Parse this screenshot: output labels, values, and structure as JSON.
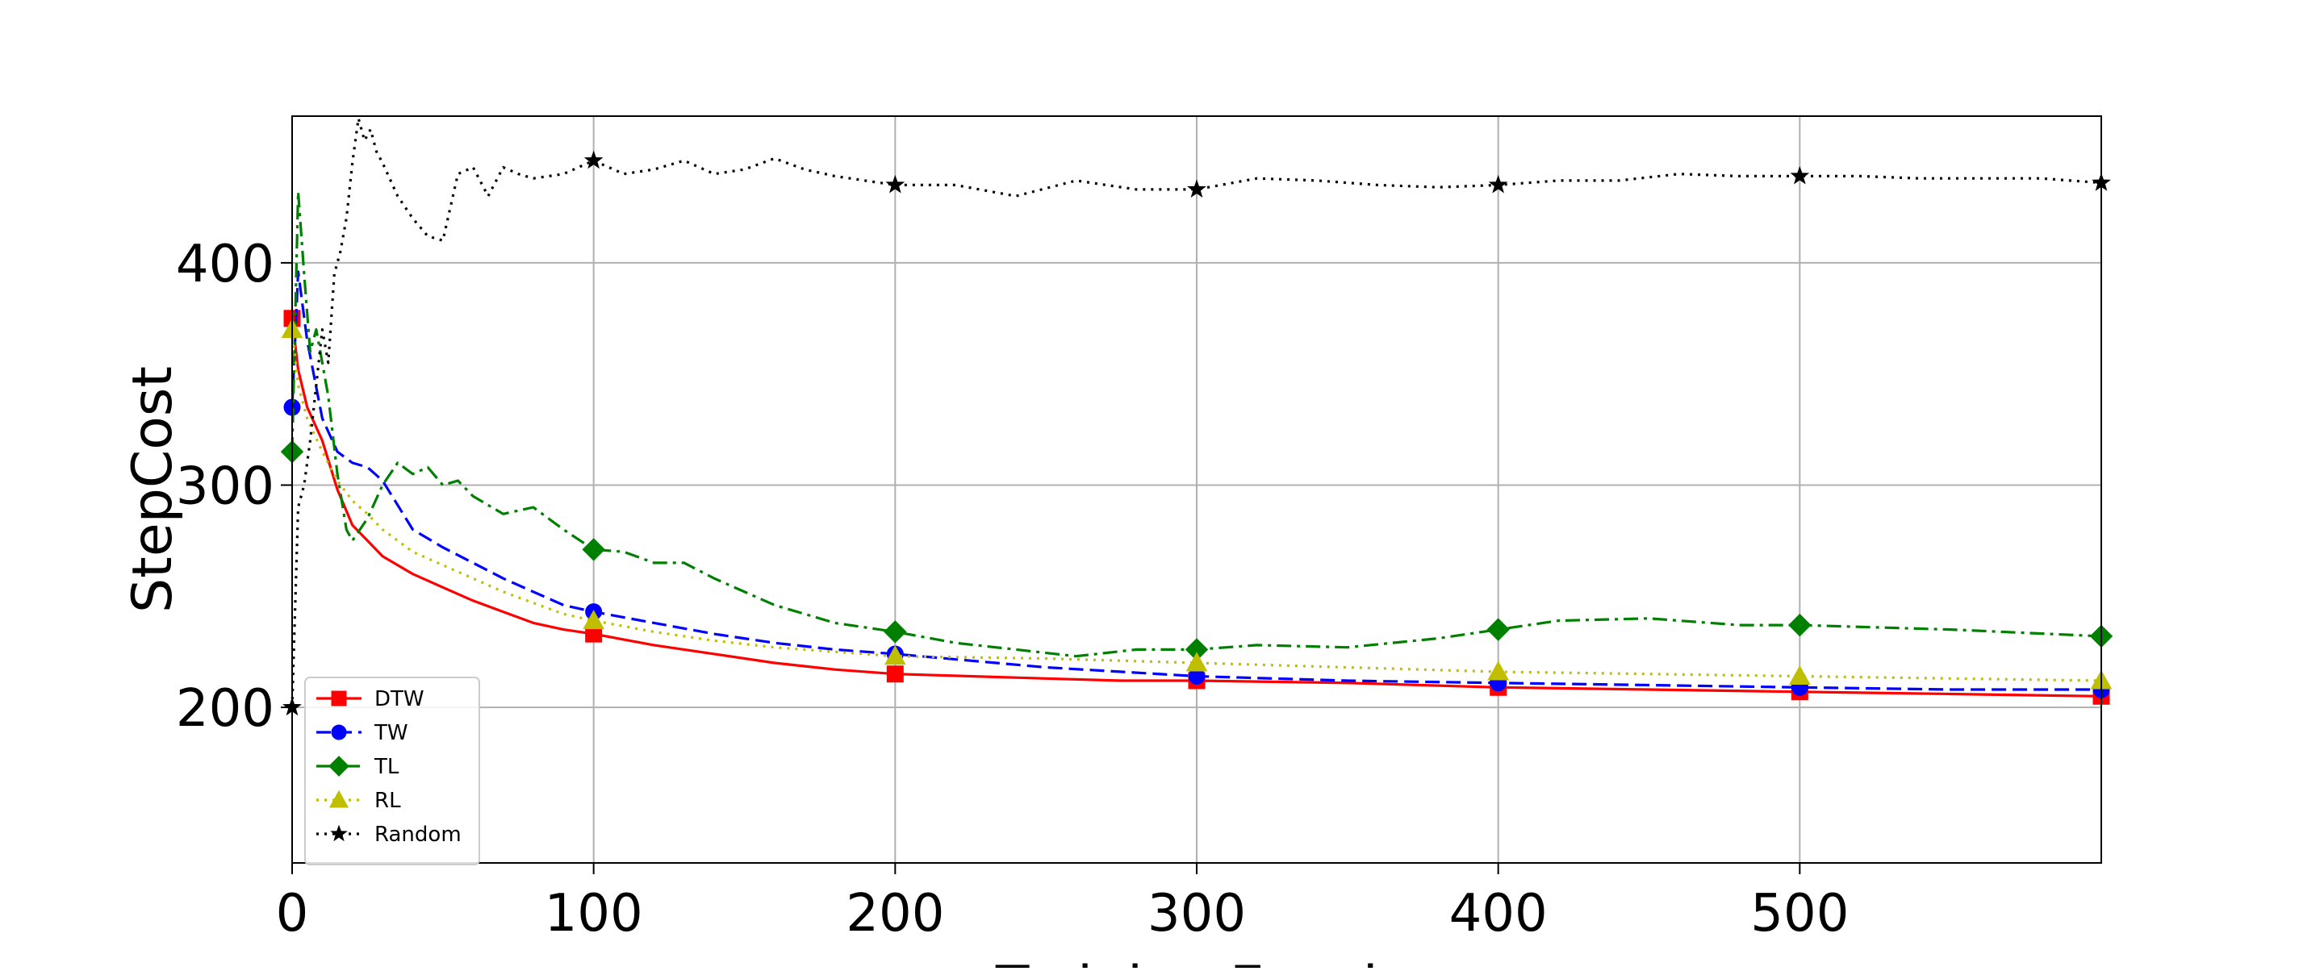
{
  "chart_data": {
    "type": "line",
    "title": "",
    "xlabel": "Training Epoch",
    "ylabel": "StepCost",
    "xlim": [
      0,
      600
    ],
    "ylim": [
      130,
      466
    ],
    "xticks": [
      0,
      100,
      200,
      300,
      400,
      500
    ],
    "yticks": [
      200,
      300,
      400
    ],
    "grid": true,
    "legend_position": "lower-left",
    "series": [
      {
        "name": "DTW",
        "color": "#ff0000",
        "linestyle": "solid",
        "marker": "square",
        "x": [
          0,
          2,
          5,
          10,
          15,
          20,
          25,
          30,
          40,
          50,
          60,
          70,
          80,
          90,
          100,
          120,
          140,
          160,
          180,
          200,
          225,
          250,
          275,
          300,
          350,
          400,
          450,
          500,
          550,
          600
        ],
        "y": [
          375,
          352,
          335,
          320,
          298,
          282,
          275,
          268,
          260,
          254,
          248,
          243,
          238,
          235,
          233,
          228,
          224,
          220,
          217,
          215,
          214,
          213,
          212,
          212,
          211,
          209,
          208,
          207,
          206,
          205
        ]
      },
      {
        "name": "TW",
        "color": "#0000ff",
        "linestyle": "dashed",
        "marker": "circle",
        "x": [
          0,
          2,
          5,
          10,
          15,
          20,
          25,
          30,
          40,
          50,
          60,
          70,
          80,
          90,
          100,
          120,
          140,
          160,
          180,
          200,
          225,
          250,
          275,
          300,
          350,
          400,
          450,
          500,
          550,
          600
        ],
        "y": [
          335,
          396,
          365,
          330,
          315,
          310,
          308,
          302,
          280,
          272,
          265,
          258,
          252,
          246,
          243,
          238,
          233,
          229,
          226,
          224,
          221,
          218,
          216,
          214,
          212,
          211,
          210,
          209,
          208,
          208
        ]
      },
      {
        "name": "TL",
        "color": "#008000",
        "linestyle": "dashdot",
        "marker": "diamond",
        "x": [
          0,
          2,
          4,
          6,
          8,
          10,
          12,
          15,
          18,
          20,
          25,
          30,
          35,
          40,
          45,
          50,
          55,
          60,
          70,
          80,
          90,
          100,
          110,
          120,
          130,
          140,
          160,
          180,
          200,
          220,
          240,
          260,
          280,
          300,
          320,
          350,
          380,
          400,
          420,
          450,
          480,
          500,
          550,
          600
        ],
        "y": [
          315,
          432,
          395,
          360,
          370,
          355,
          340,
          305,
          280,
          275,
          285,
          300,
          310,
          305,
          308,
          300,
          302,
          295,
          287,
          290,
          280,
          271,
          270,
          265,
          265,
          258,
          246,
          238,
          234,
          229,
          226,
          223,
          226,
          226,
          228,
          227,
          231,
          235,
          239,
          240,
          237,
          237,
          235,
          232
        ]
      },
      {
        "name": "RL",
        "color": "#bfbf00",
        "linestyle": "dotted",
        "marker": "triangle",
        "x": [
          0,
          2,
          5,
          10,
          15,
          20,
          25,
          30,
          40,
          50,
          60,
          70,
          80,
          90,
          100,
          120,
          140,
          160,
          180,
          200,
          250,
          300,
          350,
          400,
          450,
          500,
          550,
          600
        ],
        "y": [
          370,
          345,
          330,
          315,
          302,
          293,
          287,
          280,
          270,
          264,
          258,
          252,
          247,
          242,
          239,
          234,
          230,
          227,
          225,
          223,
          222,
          220,
          218,
          216,
          215,
          214,
          213,
          212
        ]
      },
      {
        "name": "Random",
        "color": "#000000",
        "linestyle": "dotted",
        "marker": "star",
        "x": [
          0,
          2,
          4,
          6,
          8,
          10,
          12,
          14,
          16,
          18,
          20,
          22,
          24,
          26,
          28,
          30,
          35,
          40,
          45,
          50,
          55,
          60,
          65,
          70,
          75,
          80,
          90,
          100,
          110,
          120,
          130,
          140,
          150,
          160,
          170,
          180,
          190,
          200,
          220,
          240,
          260,
          280,
          300,
          320,
          340,
          360,
          380,
          400,
          420,
          440,
          460,
          480,
          500,
          520,
          540,
          560,
          580,
          600
        ],
        "y": [
          200,
          290,
          300,
          320,
          345,
          370,
          355,
          395,
          405,
          420,
          445,
          465,
          455,
          460,
          450,
          445,
          430,
          420,
          412,
          410,
          440,
          443,
          430,
          443,
          440,
          438,
          440,
          446,
          440,
          442,
          446,
          440,
          442,
          447,
          442,
          439,
          437,
          435,
          435,
          430,
          437,
          433,
          433,
          438,
          437,
          435,
          434,
          435,
          437,
          437,
          440,
          439,
          439,
          439,
          438,
          438,
          438,
          436
        ]
      }
    ]
  }
}
